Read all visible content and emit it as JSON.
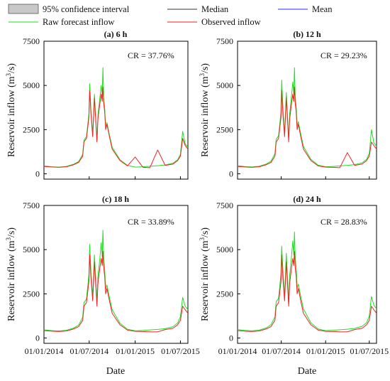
{
  "legend": [
    {
      "key": "ci",
      "label": "95% confidence interval",
      "color": "#c8c8c8",
      "kind": "box"
    },
    {
      "key": "median",
      "label": "Median",
      "color": "#333333",
      "kind": "line"
    },
    {
      "key": "mean",
      "label": "Mean",
      "color": "#2a2aff",
      "kind": "line"
    },
    {
      "key": "raw",
      "label": "Raw forecast inflow",
      "color": "#22dd22",
      "kind": "line"
    },
    {
      "key": "obs",
      "label": "Observed inflow",
      "color": "#ee2222",
      "kind": "line"
    }
  ],
  "x_label": "Date",
  "y_label_main": "Reservoir inflow (m",
  "y_label_sup": "3",
  "y_label_tail": "/s)",
  "chart_data": [
    {
      "type": "line",
      "panel": "(a) 6 h",
      "cr": "CR = 37.76%",
      "xlim": [
        "2014-01-01",
        "2015-07-31"
      ],
      "ylim": [
        -300,
        7500
      ],
      "yticks": [
        0,
        2500,
        5000,
        7500
      ],
      "xticks": [
        "01/01/2014",
        "01/07/2014",
        "01/01/2015",
        "01/07/2015"
      ],
      "x": [
        "2014-01-01",
        "2014-02-01",
        "2014-03-01",
        "2014-04-01",
        "2014-05-01",
        "2014-05-20",
        "2014-06-05",
        "2014-06-10",
        "2014-06-20",
        "2014-06-30",
        "2014-07-03",
        "2014-07-08",
        "2014-07-15",
        "2014-07-22",
        "2014-08-01",
        "2014-08-05",
        "2014-08-12",
        "2014-08-18",
        "2014-08-22",
        "2014-08-25",
        "2014-08-28",
        "2014-09-01",
        "2014-09-05",
        "2014-09-10",
        "2014-09-20",
        "2014-10-01",
        "2014-11-01",
        "2014-12-01",
        "2015-01-01",
        "2015-02-01",
        "2015-03-01",
        "2015-04-01",
        "2015-05-01",
        "2015-06-01",
        "2015-06-20",
        "2015-07-01",
        "2015-07-10",
        "2015-07-20",
        "2015-07-31"
      ],
      "series": [
        {
          "name": "Raw forecast inflow",
          "values": [
            450,
            400,
            380,
            420,
            550,
            700,
            1100,
            1900,
            2100,
            3400,
            5100,
            3600,
            2200,
            4500,
            1900,
            3300,
            4200,
            5000,
            4400,
            6000,
            4300,
            3700,
            2600,
            2900,
            2200,
            1500,
            800,
            480,
            380,
            400,
            430,
            460,
            500,
            600,
            800,
            1100,
            2400,
            1700,
            1500
          ]
        },
        {
          "name": "Observed inflow",
          "values": [
            420,
            390,
            370,
            400,
            520,
            650,
            1000,
            1800,
            2000,
            3200,
            4700,
            3400,
            2100,
            4300,
            1800,
            3100,
            3900,
            4500,
            4100,
            4900,
            4000,
            3500,
            2500,
            2800,
            2100,
            1400,
            750,
            450,
            950,
            370,
            350,
            1350,
            480,
            550,
            750,
            1000,
            2000,
            1600,
            1400
          ]
        }
      ]
    },
    {
      "type": "line",
      "panel": "(b) 12 h",
      "cr": "CR = 29.23%",
      "xlim": [
        "2014-01-01",
        "2015-07-31"
      ],
      "ylim": [
        -300,
        7500
      ],
      "yticks": [
        0,
        2500,
        5000,
        7500
      ],
      "xticks": [
        "01/01/2014",
        "01/07/2014",
        "01/01/2015",
        "01/07/2015"
      ],
      "x": [
        "2014-01-01",
        "2014-02-01",
        "2014-03-01",
        "2014-04-01",
        "2014-05-01",
        "2014-05-20",
        "2014-06-05",
        "2014-06-10",
        "2014-06-20",
        "2014-06-30",
        "2014-07-03",
        "2014-07-08",
        "2014-07-15",
        "2014-07-22",
        "2014-08-01",
        "2014-08-05",
        "2014-08-12",
        "2014-08-18",
        "2014-08-22",
        "2014-08-25",
        "2014-08-28",
        "2014-09-01",
        "2014-09-05",
        "2014-09-10",
        "2014-09-20",
        "2014-10-01",
        "2014-11-01",
        "2014-12-01",
        "2015-01-01",
        "2015-02-01",
        "2015-03-01",
        "2015-04-01",
        "2015-05-01",
        "2015-06-01",
        "2015-06-20",
        "2015-07-01",
        "2015-07-10",
        "2015-07-20",
        "2015-07-31"
      ],
      "series": [
        {
          "name": "Raw forecast inflow",
          "values": [
            460,
            410,
            390,
            430,
            560,
            720,
            1150,
            1950,
            2150,
            3500,
            5300,
            3700,
            2250,
            4600,
            1950,
            3400,
            4300,
            5200,
            4500,
            6000,
            4400,
            3800,
            2700,
            2950,
            2250,
            1550,
            820,
            490,
            400,
            420,
            450,
            480,
            520,
            620,
            820,
            1150,
            2500,
            1750,
            1550
          ]
        },
        {
          "name": "Observed inflow",
          "values": [
            420,
            390,
            370,
            400,
            520,
            650,
            1000,
            1800,
            2000,
            3200,
            4700,
            3400,
            2100,
            4300,
            1800,
            3100,
            3900,
            4500,
            4100,
            4900,
            4000,
            3500,
            2500,
            2800,
            2100,
            1400,
            750,
            450,
            380,
            370,
            350,
            1200,
            480,
            550,
            750,
            1000,
            1800,
            1600,
            1400
          ]
        }
      ]
    },
    {
      "type": "line",
      "panel": "(c) 18 h",
      "cr": "CR = 33.89%",
      "xlim": [
        "2014-01-01",
        "2015-07-31"
      ],
      "ylim": [
        -300,
        7500
      ],
      "yticks": [
        0,
        2500,
        5000,
        7500
      ],
      "xticks": [
        "01/01/2014",
        "01/07/2014",
        "01/01/2015",
        "01/07/2015"
      ],
      "x": [
        "2014-01-01",
        "2014-02-01",
        "2014-03-01",
        "2014-04-01",
        "2014-05-01",
        "2014-05-20",
        "2014-06-05",
        "2014-06-10",
        "2014-06-20",
        "2014-06-30",
        "2014-07-03",
        "2014-07-08",
        "2014-07-15",
        "2014-07-22",
        "2014-08-01",
        "2014-08-05",
        "2014-08-12",
        "2014-08-18",
        "2014-08-22",
        "2014-08-25",
        "2014-08-28",
        "2014-09-01",
        "2014-09-05",
        "2014-09-10",
        "2014-09-20",
        "2014-10-01",
        "2014-11-01",
        "2014-12-01",
        "2015-01-01",
        "2015-02-01",
        "2015-03-01",
        "2015-04-01",
        "2015-05-01",
        "2015-06-01",
        "2015-06-20",
        "2015-07-01",
        "2015-07-10",
        "2015-07-20",
        "2015-07-31"
      ],
      "series": [
        {
          "name": "Raw forecast inflow",
          "values": [
            470,
            420,
            400,
            440,
            570,
            740,
            1180,
            2000,
            2200,
            3600,
            5300,
            3750,
            2300,
            4700,
            2000,
            3500,
            4400,
            5400,
            4600,
            6100,
            4500,
            3900,
            2750,
            3000,
            2300,
            1600,
            840,
            500,
            410,
            430,
            460,
            490,
            530,
            640,
            850,
            1200,
            2300,
            1800,
            1600
          ]
        },
        {
          "name": "Observed inflow",
          "values": [
            420,
            390,
            370,
            400,
            520,
            650,
            1000,
            1800,
            2000,
            3200,
            4700,
            3400,
            2100,
            4300,
            1800,
            3100,
            3900,
            4500,
            4100,
            4900,
            4000,
            3500,
            2500,
            2800,
            2100,
            1400,
            750,
            450,
            380,
            370,
            350,
            350,
            480,
            550,
            750,
            1000,
            1800,
            1600,
            1400
          ]
        }
      ]
    },
    {
      "type": "line",
      "panel": "(d) 24 h",
      "cr": "CR = 28.83%",
      "xlim": [
        "2014-01-01",
        "2015-07-31"
      ],
      "ylim": [
        -300,
        7500
      ],
      "yticks": [
        0,
        2500,
        5000,
        7500
      ],
      "xticks": [
        "01/01/2014",
        "01/07/2014",
        "01/01/2015",
        "01/07/2015"
      ],
      "x": [
        "2014-01-01",
        "2014-02-01",
        "2014-03-01",
        "2014-04-01",
        "2014-05-01",
        "2014-05-20",
        "2014-06-05",
        "2014-06-10",
        "2014-06-20",
        "2014-06-30",
        "2014-07-03",
        "2014-07-08",
        "2014-07-15",
        "2014-07-22",
        "2014-08-01",
        "2014-08-05",
        "2014-08-12",
        "2014-08-18",
        "2014-08-22",
        "2014-08-25",
        "2014-08-28",
        "2014-09-01",
        "2014-09-05",
        "2014-09-10",
        "2014-09-20",
        "2014-10-01",
        "2014-11-01",
        "2014-12-01",
        "2015-01-01",
        "2015-02-01",
        "2015-03-01",
        "2015-04-01",
        "2015-05-01",
        "2015-06-01",
        "2015-06-20",
        "2015-07-01",
        "2015-07-10",
        "2015-07-20",
        "2015-07-31"
      ],
      "series": [
        {
          "name": "Raw forecast inflow",
          "values": [
            480,
            430,
            410,
            450,
            580,
            760,
            1200,
            2050,
            2250,
            3650,
            5200,
            3800,
            2350,
            4800,
            2050,
            3550,
            4500,
            5500,
            4700,
            6000,
            4600,
            4000,
            2800,
            3050,
            2350,
            1650,
            860,
            510,
            420,
            440,
            470,
            500,
            540,
            660,
            870,
            1250,
            2350,
            1850,
            1650
          ]
        },
        {
          "name": "Observed inflow",
          "values": [
            420,
            390,
            370,
            400,
            520,
            650,
            1000,
            1800,
            2000,
            3200,
            4700,
            3400,
            2100,
            4300,
            1800,
            3100,
            3900,
            4500,
            4100,
            4900,
            4000,
            3500,
            2500,
            2800,
            2100,
            1400,
            750,
            450,
            380,
            370,
            350,
            350,
            480,
            550,
            750,
            1000,
            1800,
            1600,
            1400
          ]
        }
      ]
    }
  ]
}
